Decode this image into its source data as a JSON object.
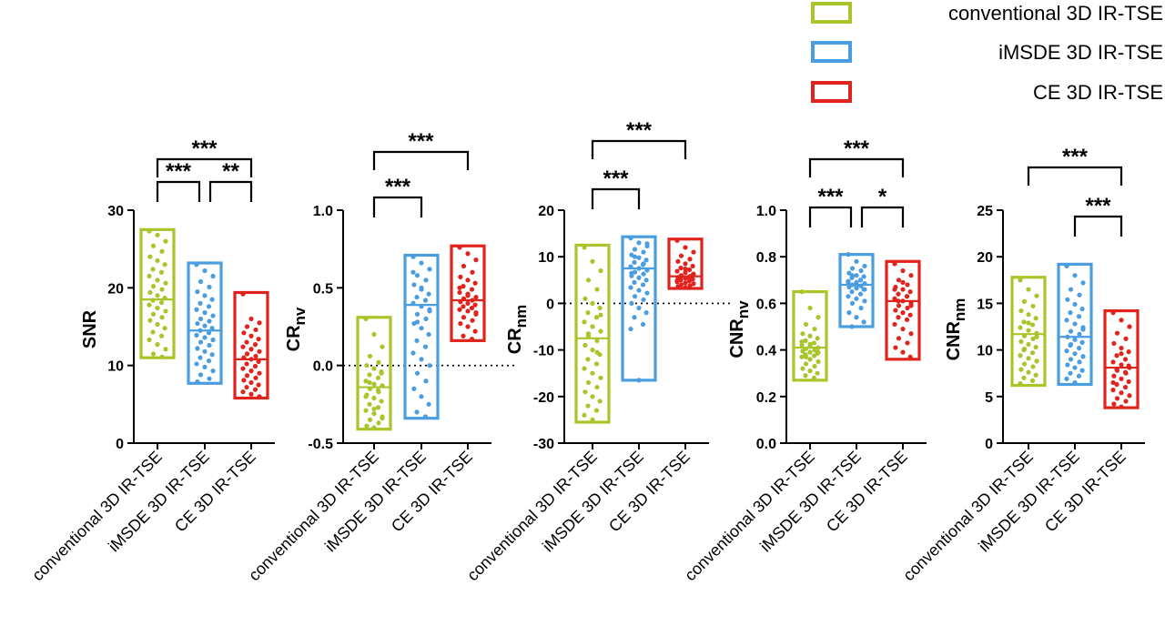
{
  "legend": {
    "entries": [
      {
        "label": "conventional 3D IR-TSE",
        "color": "#a8c62a"
      },
      {
        "label": "iMSDE 3D IR-TSE",
        "color": "#4a9de0"
      },
      {
        "label": "CE 3D IR-TSE",
        "color": "#e0231c"
      }
    ]
  },
  "colors": {
    "conventional": "#a8c62a",
    "imsde": "#4a9de0",
    "ce": "#e0231c"
  },
  "chart_data": [
    {
      "type": "scatter",
      "ylabel": "SNR",
      "ylabel_sub": "",
      "ylim": [
        0,
        30
      ],
      "yticks": [
        0,
        10,
        20,
        30
      ],
      "ytick_labels": [
        "0",
        "10",
        "20",
        "30"
      ],
      "zero_line": false,
      "categories": [
        "conventional 3D IR-TSE",
        "iMSDE 3D IR-TSE",
        "CE 3D IR-TSE"
      ],
      "series": [
        {
          "name": "conventional 3D IR-TSE",
          "min": 11,
          "max": 27.5,
          "median": 18.5,
          "points": [
            27.3,
            26.8,
            26,
            25.4,
            24.7,
            24,
            23.5,
            23,
            22.4,
            22,
            21.5,
            21,
            20.6,
            20.2,
            19.8,
            19.4,
            19,
            18.7,
            18.4,
            18.1,
            17.8,
            17.4,
            17,
            16.6,
            16.2,
            15.8,
            15.3,
            14.8,
            14.3,
            13.8,
            13.3,
            12.7,
            12.1,
            11.5,
            11.1
          ]
        },
        {
          "name": "iMSDE 3D IR-TSE",
          "min": 7.7,
          "max": 23.2,
          "median": 14.5,
          "points": [
            23,
            22.2,
            21.5,
            20.8,
            20.1,
            19.5,
            19,
            18.5,
            18,
            17.6,
            17.2,
            16.8,
            16.4,
            16,
            15.7,
            15.4,
            15.1,
            14.8,
            14.5,
            14.2,
            13.9,
            13.6,
            13.3,
            13,
            12.6,
            12.2,
            11.8,
            11.4,
            11,
            10.6,
            10.2,
            9.8,
            9.3,
            8.8,
            8.3,
            7.9
          ]
        },
        {
          "name": "CE 3D IR-TSE",
          "min": 5.8,
          "max": 19.4,
          "median": 10.8,
          "points": [
            19.2,
            16,
            15.5,
            15,
            14.6,
            14.2,
            13.8,
            13.4,
            13,
            12.7,
            12.4,
            12.1,
            11.8,
            11.5,
            11.2,
            11,
            10.8,
            10.5,
            10.2,
            9.9,
            9.6,
            9.3,
            9,
            8.7,
            8.4,
            8.1,
            7.8,
            7.5,
            7.2,
            6.9,
            6.6,
            6.3,
            6
          ]
        }
      ],
      "brackets": [
        {
          "from": 0,
          "to": 2,
          "label": "***",
          "level": 2
        },
        {
          "from": 0,
          "to": 1,
          "label": "***",
          "level": 1
        },
        {
          "from": 1,
          "to": 2,
          "label": "**",
          "level": 1
        }
      ]
    },
    {
      "type": "scatter",
      "ylabel": "CR",
      "ylabel_sub": "nv",
      "ylim": [
        -0.5,
        1.0
      ],
      "yticks": [
        -0.5,
        0,
        0.5,
        1.0
      ],
      "ytick_labels": [
        "-0.5",
        "0.0",
        "0.5",
        "1.0"
      ],
      "zero_line": true,
      "categories": [
        "conventional 3D IR-TSE",
        "iMSDE 3D IR-TSE",
        "CE 3D IR-TSE"
      ],
      "series": [
        {
          "name": "conventional 3D IR-TSE",
          "min": -0.41,
          "max": 0.31,
          "median": -0.14,
          "points": [
            0.3,
            0.2,
            0.12,
            0.06,
            0.02,
            0,
            -0.02,
            -0.04,
            -0.06,
            -0.08,
            -0.1,
            -0.12,
            -0.13,
            -0.15,
            -0.17,
            -0.19,
            -0.21,
            -0.23,
            -0.25,
            -0.27,
            -0.29,
            -0.31,
            -0.33,
            -0.35,
            -0.37,
            -0.39,
            -0.4,
            -0.05,
            -0.11,
            -0.16,
            -0.2,
            -0.28,
            -0.34
          ]
        },
        {
          "name": "iMSDE 3D IR-TSE",
          "min": -0.34,
          "max": 0.71,
          "median": 0.39,
          "points": [
            0.7,
            0.66,
            0.62,
            0.58,
            0.55,
            0.52,
            0.49,
            0.46,
            0.44,
            0.42,
            0.4,
            0.38,
            0.36,
            0.33,
            0.3,
            0.27,
            0.24,
            0.2,
            0.16,
            0.12,
            0.08,
            0.04,
            0,
            -0.05,
            -0.1,
            -0.15,
            -0.2,
            -0.25,
            -0.3,
            -0.33,
            0.6,
            0.5,
            0.35,
            0.28
          ]
        },
        {
          "name": "CE 3D IR-TSE",
          "min": 0.16,
          "max": 0.77,
          "median": 0.42,
          "points": [
            0.76,
            0.72,
            0.68,
            0.64,
            0.6,
            0.57,
            0.55,
            0.53,
            0.51,
            0.49,
            0.47,
            0.45,
            0.44,
            0.43,
            0.42,
            0.41,
            0.4,
            0.39,
            0.38,
            0.37,
            0.36,
            0.35,
            0.33,
            0.31,
            0.29,
            0.27,
            0.25,
            0.22,
            0.19,
            0.17,
            0.5,
            0.46,
            0.34
          ]
        }
      ],
      "brackets": [
        {
          "from": 0,
          "to": 2,
          "label": "***",
          "level": 2
        },
        {
          "from": 0,
          "to": 1,
          "label": "***",
          "level": 1
        }
      ]
    },
    {
      "type": "scatter",
      "ylabel": "CR",
      "ylabel_sub": "nm",
      "ylim": [
        -30,
        20
      ],
      "yticks": [
        -30,
        -20,
        -10,
        0,
        10,
        20
      ],
      "ytick_labels": [
        "-30",
        "-20",
        "-10",
        "0",
        "10",
        "20"
      ],
      "zero_line": true,
      "categories": [
        "conventional 3D IR-TSE",
        "iMSDE 3D IR-TSE",
        "CE 3D IR-TSE"
      ],
      "series": [
        {
          "name": "conventional 3D IR-TSE",
          "min": -25.5,
          "max": 12.5,
          "median": -7.5,
          "points": [
            12,
            9,
            7,
            5,
            3,
            1,
            0,
            -1,
            -2,
            -3,
            -4,
            -5,
            -6,
            -7,
            -8,
            -9,
            -10,
            -11,
            -12,
            -13,
            -14,
            -15,
            -16,
            -17,
            -18,
            -19,
            -20,
            -21,
            -22,
            -23,
            -24,
            -25,
            -2.5,
            -6.5,
            -10.5
          ]
        },
        {
          "name": "iMSDE 3D IR-TSE",
          "min": -16.5,
          "max": 14.3,
          "median": 7.5,
          "points": [
            14,
            13,
            12.3,
            11.6,
            11,
            10.4,
            9.8,
            9.3,
            8.8,
            8.3,
            7.9,
            7.5,
            7.1,
            6.7,
            6.3,
            5.9,
            5.5,
            5,
            4.5,
            4,
            3.4,
            2.8,
            2.2,
            1.5,
            0.8,
            0,
            -1,
            -2,
            -3,
            -4.5,
            -5.5,
            -16.5,
            12.8,
            10,
            8.5,
            6.5
          ]
        },
        {
          "name": "CE 3D IR-TSE",
          "min": 3.2,
          "max": 13.8,
          "median": 5.8,
          "points": [
            13.5,
            12,
            11,
            10.2,
            9.5,
            9,
            8.5,
            8,
            7.6,
            7.2,
            6.9,
            6.6,
            6.3,
            6,
            5.8,
            5.6,
            5.4,
            5.2,
            5,
            4.8,
            4.6,
            4.4,
            4.2,
            4,
            3.8,
            3.6,
            3.4,
            6.1,
            5.7,
            5.3,
            4.9,
            7.4
          ]
        }
      ],
      "brackets": [
        {
          "from": 0,
          "to": 2,
          "label": "***",
          "level": 2
        },
        {
          "from": 0,
          "to": 1,
          "label": "***",
          "level": 1
        }
      ]
    },
    {
      "type": "scatter",
      "ylabel": "CNR",
      "ylabel_sub": "nv",
      "ylim": [
        0,
        1.0
      ],
      "yticks": [
        0,
        0.2,
        0.4,
        0.6,
        0.8,
        1.0
      ],
      "ytick_labels": [
        "0.0",
        "0.2",
        "0.4",
        "0.6",
        "0.8",
        "1.0"
      ],
      "zero_line": false,
      "categories": [
        "conventional 3D IR-TSE",
        "iMSDE 3D IR-TSE",
        "CE 3D IR-TSE"
      ],
      "series": [
        {
          "name": "conventional 3D IR-TSE",
          "min": 0.27,
          "max": 0.65,
          "median": 0.41,
          "points": [
            0.65,
            0.58,
            0.54,
            0.51,
            0.49,
            0.47,
            0.46,
            0.45,
            0.44,
            0.43,
            0.42,
            0.415,
            0.41,
            0.405,
            0.4,
            0.395,
            0.39,
            0.385,
            0.38,
            0.375,
            0.37,
            0.36,
            0.35,
            0.34,
            0.33,
            0.32,
            0.31,
            0.3,
            0.29,
            0.28,
            0.435,
            0.425,
            0.39,
            0.37
          ]
        },
        {
          "name": "iMSDE 3D IR-TSE",
          "min": 0.5,
          "max": 0.81,
          "median": 0.68,
          "points": [
            0.81,
            0.78,
            0.76,
            0.75,
            0.74,
            0.73,
            0.72,
            0.715,
            0.71,
            0.7,
            0.695,
            0.69,
            0.685,
            0.68,
            0.675,
            0.67,
            0.665,
            0.66,
            0.65,
            0.64,
            0.63,
            0.62,
            0.61,
            0.6,
            0.58,
            0.56,
            0.54,
            0.52,
            0.5,
            0.7,
            0.69,
            0.67,
            0.66,
            0.72
          ]
        },
        {
          "name": "CE 3D IR-TSE",
          "min": 0.36,
          "max": 0.78,
          "median": 0.61,
          "points": [
            0.77,
            0.74,
            0.72,
            0.7,
            0.68,
            0.67,
            0.66,
            0.65,
            0.64,
            0.63,
            0.62,
            0.61,
            0.6,
            0.59,
            0.58,
            0.57,
            0.56,
            0.55,
            0.54,
            0.53,
            0.51,
            0.49,
            0.47,
            0.45,
            0.43,
            0.41,
            0.39,
            0.37,
            0.61,
            0.63,
            0.66,
            0.69,
            0.59
          ]
        }
      ],
      "brackets": [
        {
          "from": 0,
          "to": 2,
          "label": "***",
          "level": 2
        },
        {
          "from": 0,
          "to": 1,
          "label": "***",
          "level": 1
        },
        {
          "from": 1,
          "to": 2,
          "label": "*",
          "level": 1
        }
      ]
    },
    {
      "type": "scatter",
      "ylabel": "CNR",
      "ylabel_sub": "nm",
      "ylim": [
        0,
        25
      ],
      "yticks": [
        0,
        5,
        10,
        15,
        20,
        25
      ],
      "ytick_labels": [
        "0",
        "5",
        "10",
        "15",
        "20",
        "25"
      ],
      "zero_line": false,
      "categories": [
        "conventional 3D IR-TSE",
        "iMSDE 3D IR-TSE",
        "CE 3D IR-TSE"
      ],
      "series": [
        {
          "name": "conventional 3D IR-TSE",
          "min": 6.2,
          "max": 17.8,
          "median": 11.7,
          "points": [
            17.5,
            16.5,
            15.8,
            15.2,
            14.7,
            14.2,
            13.8,
            13.4,
            13,
            12.7,
            12.4,
            12.1,
            11.8,
            11.5,
            11.2,
            10.9,
            10.6,
            10.3,
            10,
            9.7,
            9.4,
            9.1,
            8.8,
            8.5,
            8.2,
            7.9,
            7.6,
            7.3,
            7,
            6.7,
            6.4,
            12.9,
            11.4,
            10.1
          ]
        },
        {
          "name": "iMSDE 3D IR-TSE",
          "min": 6.3,
          "max": 19.2,
          "median": 11.4,
          "points": [
            19,
            18,
            17.2,
            16.5,
            15.9,
            15.4,
            14.9,
            14.4,
            14,
            13.6,
            13.2,
            12.8,
            12.4,
            12,
            11.7,
            11.4,
            11.1,
            10.8,
            10.5,
            10.2,
            9.9,
            9.6,
            9.3,
            9,
            8.7,
            8.4,
            8.1,
            7.8,
            7.5,
            7.2,
            6.9,
            6.5,
            12.2,
            10.6
          ]
        },
        {
          "name": "CE 3D IR-TSE",
          "min": 3.8,
          "max": 14.2,
          "median": 8.1,
          "points": [
            14,
            13.2,
            12.5,
            11.8,
            11.2,
            10.7,
            10.2,
            9.8,
            9.4,
            9,
            8.7,
            8.4,
            8.1,
            7.8,
            7.5,
            7.2,
            6.9,
            6.6,
            6.3,
            6,
            5.7,
            5.4,
            5.1,
            4.8,
            4.5,
            4.2,
            3.9,
            8.3,
            7.9,
            7.6,
            6.5,
            9.6
          ]
        }
      ],
      "brackets": [
        {
          "from": 0,
          "to": 2,
          "label": "***",
          "level": 2
        },
        {
          "from": 1,
          "to": 2,
          "label": "***",
          "level": 1
        }
      ]
    }
  ]
}
